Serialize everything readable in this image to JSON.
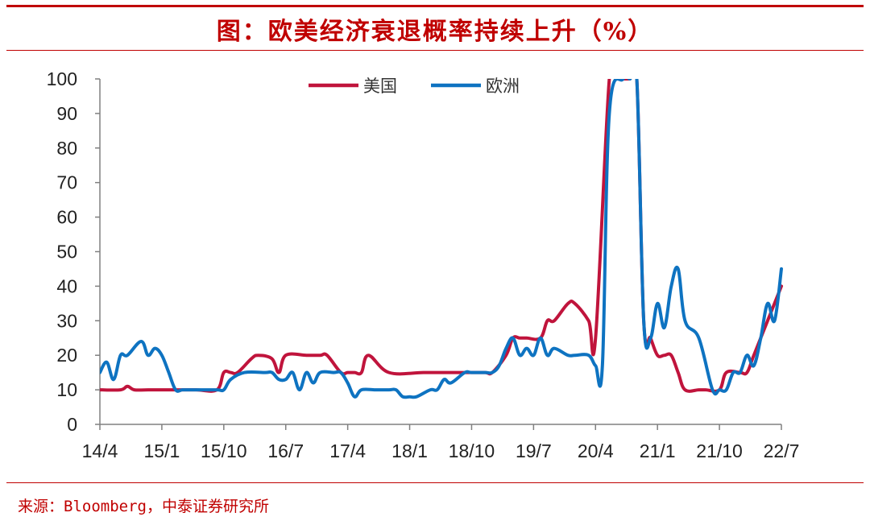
{
  "title": "图：欧美经济衰退概率持续上升（%）",
  "source": "来源：Bloomberg，中泰证券研究所",
  "colors": {
    "accent": "#c00000",
    "us": "#c0143c",
    "eu": "#0e73c1",
    "axis": "#808080"
  },
  "chart_data": {
    "type": "line",
    "title": "",
    "xlabel": "",
    "ylabel": "",
    "ylim": [
      0,
      100
    ],
    "yticks": [
      0,
      10,
      20,
      30,
      40,
      50,
      60,
      70,
      80,
      90,
      100
    ],
    "xlim": [
      "2014-04",
      "2022-07"
    ],
    "xticks": [
      "14/4",
      "15/1",
      "15/10",
      "16/7",
      "17/4",
      "18/1",
      "18/10",
      "19/7",
      "20/4",
      "21/1",
      "21/10",
      "22/7"
    ],
    "legend_position": "top-center",
    "grid": false,
    "series": [
      {
        "name": "美国",
        "color": "#c0143c",
        "x": [
          "2014-04",
          "2014-07",
          "2014-08",
          "2014-09",
          "2014-11",
          "2015-03",
          "2015-06",
          "2015-09",
          "2015-10",
          "2015-11",
          "2015-12",
          "2016-02",
          "2016-03",
          "2016-05",
          "2016-06",
          "2016-07",
          "2016-10",
          "2016-12",
          "2017-01",
          "2017-03",
          "2017-04",
          "2017-05",
          "2017-06",
          "2017-07",
          "2017-10",
          "2018-03",
          "2018-07",
          "2018-10",
          "2018-12",
          "2019-01",
          "2019-03",
          "2019-04",
          "2019-05",
          "2019-06",
          "2019-08",
          "2019-09",
          "2019-10",
          "2019-12",
          "2020-01",
          "2020-03",
          "2020-04",
          "2020-06",
          "2020-07",
          "2020-08",
          "2020-09",
          "2020-10",
          "2020-11",
          "2020-12",
          "2021-01",
          "2021-02",
          "2021-03",
          "2021-04",
          "2021-05",
          "2021-07",
          "2021-08",
          "2021-10",
          "2021-11",
          "2022-01",
          "2022-02",
          "2022-03",
          "2022-05",
          "2022-07"
        ],
        "values": [
          10,
          10,
          11,
          10,
          10,
          10,
          10,
          10,
          15,
          15,
          15,
          19,
          20,
          19,
          15,
          20,
          20,
          20,
          20,
          15,
          15,
          15,
          15,
          20,
          15,
          15,
          15,
          15,
          15,
          15,
          20,
          25,
          25,
          25,
          25,
          30,
          30,
          35,
          35,
          30,
          25,
          100,
          100,
          100,
          100,
          100,
          30,
          25,
          20,
          20,
          20,
          15,
          10,
          10,
          10,
          10,
          15,
          15,
          15,
          20,
          30,
          40
        ]
      },
      {
        "name": "欧洲",
        "color": "#0e73c1",
        "x": [
          "2014-04",
          "2014-05",
          "2014-06",
          "2014-07",
          "2014-08",
          "2014-10",
          "2014-11",
          "2014-12",
          "2015-01",
          "2015-02",
          "2015-03",
          "2015-04",
          "2015-05",
          "2015-06",
          "2015-09",
          "2015-10",
          "2015-11",
          "2016-01",
          "2016-04",
          "2016-05",
          "2016-06",
          "2016-07",
          "2016-08",
          "2016-09",
          "2016-10",
          "2016-11",
          "2016-12",
          "2017-02",
          "2017-03",
          "2017-04",
          "2017-05",
          "2017-06",
          "2017-08",
          "2017-10",
          "2017-11",
          "2017-12",
          "2018-01",
          "2018-02",
          "2018-04",
          "2018-05",
          "2018-06",
          "2018-07",
          "2018-09",
          "2018-10",
          "2018-12",
          "2019-01",
          "2019-02",
          "2019-03",
          "2019-04",
          "2019-05",
          "2019-06",
          "2019-07",
          "2019-08",
          "2019-09",
          "2019-10",
          "2019-12",
          "2020-01",
          "2020-03",
          "2020-04",
          "2020-05",
          "2020-06",
          "2020-08",
          "2020-09",
          "2020-10",
          "2020-11",
          "2020-12",
          "2021-01",
          "2021-02",
          "2021-03",
          "2021-04",
          "2021-05",
          "2021-07",
          "2021-09",
          "2021-10",
          "2021-11",
          "2021-12",
          "2022-01",
          "2022-02",
          "2022-03",
          "2022-04",
          "2022-05",
          "2022-06",
          "2022-07"
        ],
        "values": [
          15,
          18,
          13,
          20,
          20,
          24,
          20,
          22,
          20,
          15,
          10,
          10,
          10,
          10,
          10,
          10,
          13,
          15,
          15,
          15,
          13,
          13,
          15,
          10,
          15,
          12,
          15,
          15,
          15,
          12,
          8,
          10,
          10,
          10,
          10,
          8,
          8,
          8,
          10,
          10,
          13,
          12,
          15,
          15,
          15,
          15,
          17,
          22,
          25,
          20,
          22,
          20,
          25,
          20,
          22,
          20,
          20,
          20,
          17,
          17,
          90,
          100,
          100,
          100,
          30,
          25,
          35,
          28,
          40,
          45,
          30,
          25,
          10,
          10,
          10,
          15,
          15,
          20,
          17,
          25,
          35,
          30,
          45
        ]
      }
    ]
  }
}
